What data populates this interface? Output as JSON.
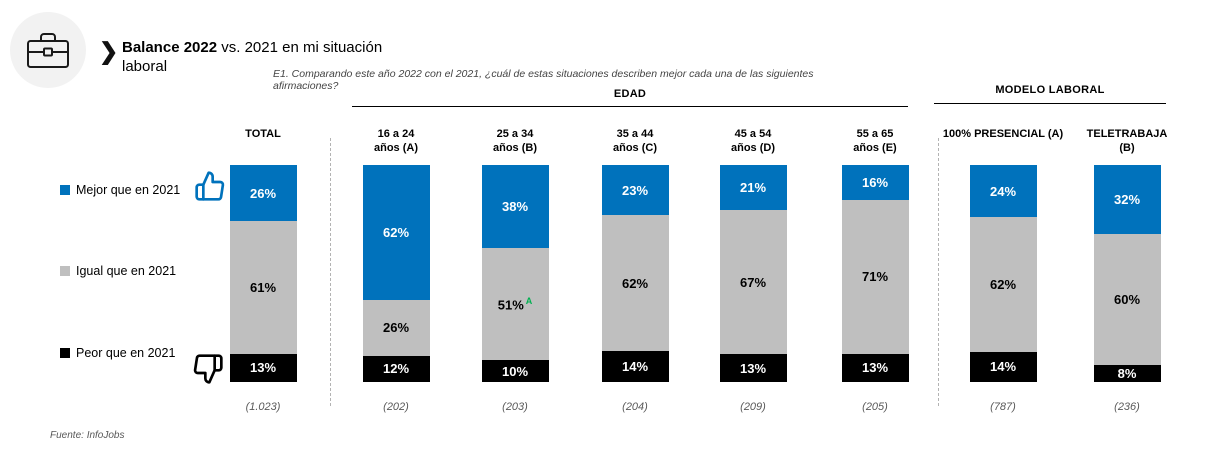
{
  "colors": {
    "better": "#0072BC",
    "equal": "#BFBFBF",
    "worse": "#000000",
    "sig_marker": "#00B050",
    "icon_circle_bg": "#F2F2F2"
  },
  "header": {
    "icon": "briefcase-icon",
    "chevron": "❯",
    "title_bold": "Balance 2022",
    "title_rest": " vs. 2021 en mi situación laboral",
    "question": "E1. Comparando este año 2022 con el 2021, ¿cuál de estas situaciones describen mejor cada una de las siguientes afirmaciones?"
  },
  "group_headers": {
    "edad": "EDAD",
    "modelo": "MODELO LABORAL"
  },
  "legend": {
    "items": [
      {
        "label": "Mejor que en 2021",
        "color": "#0072BC",
        "icon": "thumbs-up-icon"
      },
      {
        "label": "Igual que en 2021",
        "color": "#BFBFBF",
        "icon": null
      },
      {
        "label": "Peor que en 2021",
        "color": "#000000",
        "icon": "thumbs-down-icon"
      }
    ]
  },
  "chart_data": {
    "type": "bar",
    "subtype": "100%-stacked-column",
    "title": "Balance 2022 vs. 2021 en mi situación laboral",
    "series_names": [
      "Mejor que en 2021",
      "Igual que en 2021",
      "Peor que en 2021"
    ],
    "series_colors": [
      "#0072BC",
      "#BFBFBF",
      "#000000"
    ],
    "label_text_colors": [
      "#FFFFFF",
      "#000000",
      "#FFFFFF"
    ],
    "value_suffix": "%",
    "legend_position": "left",
    "columns": [
      {
        "header_line1": "TOTAL",
        "header_line2": "",
        "group": "TOTAL",
        "values": [
          26,
          61,
          13
        ],
        "base": "(1.023)"
      },
      {
        "header_line1": "16 a 24",
        "header_line2": "años (A)",
        "group": "EDAD",
        "values": [
          62,
          26,
          12
        ],
        "base": "(202)"
      },
      {
        "header_line1": "25 a 34",
        "header_line2": "años (B)",
        "group": "EDAD",
        "values": [
          38,
          51,
          10
        ],
        "base": "(203)",
        "sig": {
          "segment_index": 1,
          "marker": "A"
        }
      },
      {
        "header_line1": "35 a 44",
        "header_line2": "años (C)",
        "group": "EDAD",
        "values": [
          23,
          62,
          14
        ],
        "base": "(204)"
      },
      {
        "header_line1": "45 a 54",
        "header_line2": "años (D)",
        "group": "EDAD",
        "values": [
          21,
          67,
          13
        ],
        "base": "(209)"
      },
      {
        "header_line1": "55 a 65",
        "header_line2": "años (E)",
        "group": "EDAD",
        "values": [
          16,
          71,
          13
        ],
        "base": "(205)"
      },
      {
        "header_line1": "100% PRESENCIAL (A)",
        "header_line2": "",
        "group": "MODELO LABORAL",
        "values": [
          24,
          62,
          14
        ],
        "base": "(787)"
      },
      {
        "header_line1": "TELETRABAJA",
        "header_line2": "(B)",
        "group": "MODELO LABORAL",
        "values": [
          32,
          60,
          8
        ],
        "base": "(236)"
      }
    ]
  },
  "footer": {
    "source": "Fuente: InfoJobs"
  }
}
